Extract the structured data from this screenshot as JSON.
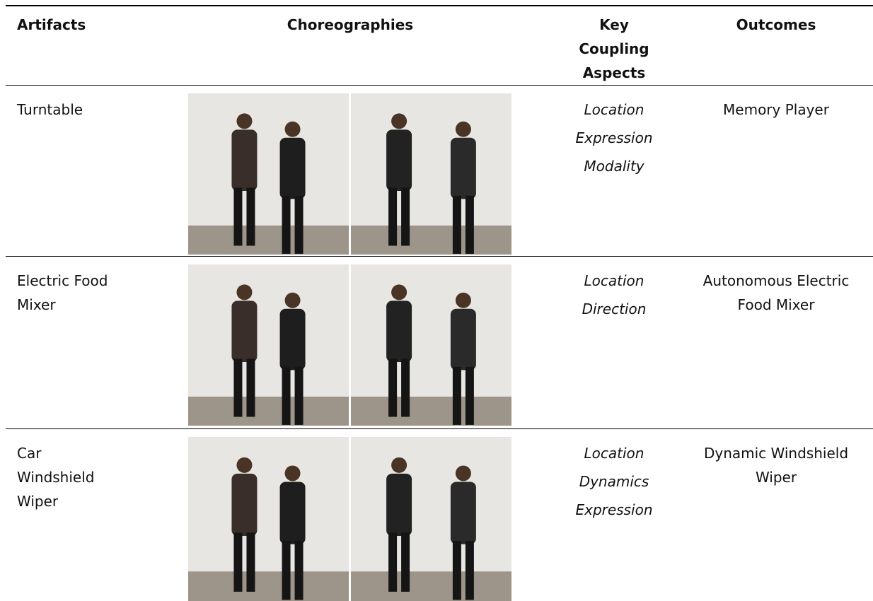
{
  "table": {
    "header": {
      "artifacts": "Artifacts",
      "choreographies": "Choreographies",
      "aspects": [
        "Key",
        "Coupling",
        "Aspects"
      ],
      "outcomes": "Outcomes"
    },
    "rows": [
      {
        "artifact": [
          "Turntable"
        ],
        "aspects": [
          "Location",
          "Expression",
          "Modality"
        ],
        "outcome": [
          "Memory Player"
        ]
      },
      {
        "artifact": [
          "Electric Food",
          "Mixer"
        ],
        "aspects": [
          "Location",
          "Direction"
        ],
        "outcome": [
          "Autonomous Electric",
          "Food Mixer"
        ]
      },
      {
        "artifact": [
          "Car",
          "Windshield",
          "Wiper"
        ],
        "aspects": [
          "Location",
          "Dynamics",
          "Expression"
        ],
        "outcome": [
          "Dynamic Windshield",
          "Wiper"
        ]
      }
    ]
  }
}
